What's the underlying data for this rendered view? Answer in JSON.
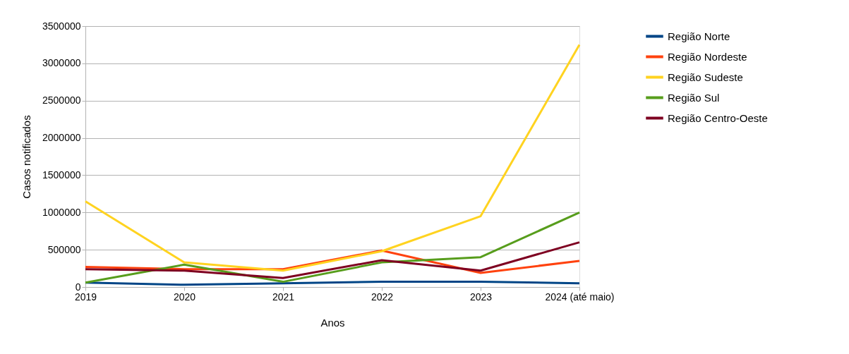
{
  "chart_data": {
    "type": "line",
    "xlabel": "Anos",
    "ylabel": "Casos notificados",
    "categories": [
      "2019",
      "2020",
      "2021",
      "2022",
      "2023",
      "2024 (até maio)"
    ],
    "series": [
      {
        "name": "Região Norte",
        "color": "#004586",
        "values": [
          60000,
          30000,
          50000,
          70000,
          70000,
          50000
        ]
      },
      {
        "name": "Região Nordeste",
        "color": "#ff420e",
        "values": [
          270000,
          240000,
          240000,
          490000,
          190000,
          350000
        ]
      },
      {
        "name": "Região Sudeste",
        "color": "#ffd320",
        "values": [
          1150000,
          330000,
          220000,
          480000,
          950000,
          3250000
        ]
      },
      {
        "name": "Região Sul",
        "color": "#579d1c",
        "values": [
          60000,
          300000,
          70000,
          330000,
          400000,
          1000000
        ]
      },
      {
        "name": "Região Centro-Oeste",
        "color": "#7e0021",
        "values": [
          240000,
          220000,
          120000,
          360000,
          220000,
          600000
        ]
      }
    ],
    "ylim": [
      0,
      3500000
    ],
    "yticks": [
      0,
      500000,
      1000000,
      1500000,
      2000000,
      2500000,
      3000000,
      3500000
    ],
    "grid": "y",
    "legend": "right",
    "marker": "none",
    "line_style": "solid"
  }
}
